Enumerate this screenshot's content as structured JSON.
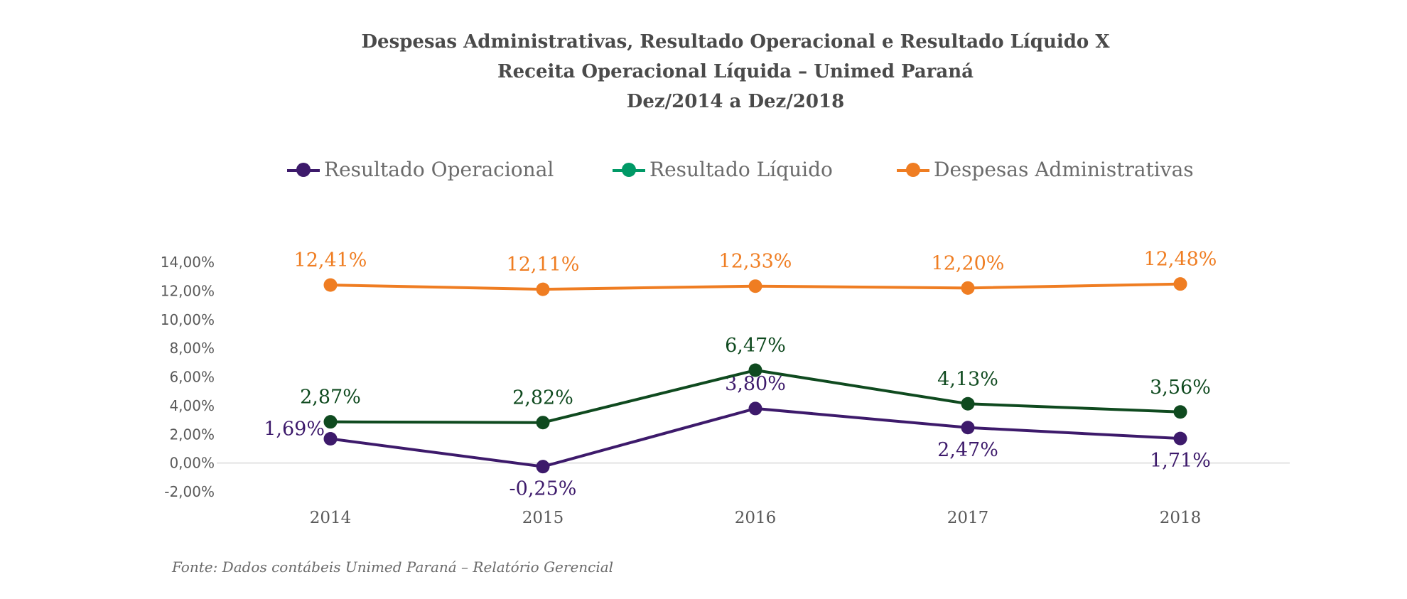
{
  "title_lines": [
    "Despesas Administrativas, Resultado Operacional e Resultado Líquido X",
    "Receita Operacional Líquida – Unimed Paraná",
    "Dez/2014 a Dez/2018"
  ],
  "source_note": "Fonte: Dados contábeis Unimed Paraná – Relatório Gerencial",
  "chart_data": {
    "type": "line",
    "title": "Despesas Administrativas, Resultado Operacional e Resultado Líquido X Receita Operacional Líquida – Unimed Paraná Dez/2014 a Dez/2018",
    "categories": [
      "2014",
      "2015",
      "2016",
      "2017",
      "2018"
    ],
    "ylim": [
      -2,
      14
    ],
    "y_ticks": [
      {
        "value": 14,
        "label": "14,00%"
      },
      {
        "value": 12,
        "label": "12,00%"
      },
      {
        "value": 10,
        "label": "10,00%"
      },
      {
        "value": 8,
        "label": "8,00%"
      },
      {
        "value": 6,
        "label": "6,00%"
      },
      {
        "value": 4,
        "label": "4,00%"
      },
      {
        "value": 2,
        "label": "2,00%"
      },
      {
        "value": 0,
        "label": "0,00%"
      },
      {
        "value": -2,
        "label": "-2,00%"
      }
    ],
    "grid": false,
    "legend_position": "top",
    "series": [
      {
        "name": "Resultado Operacional",
        "color": "#3d1a6b",
        "legend_color": "#3d1a6b",
        "values": [
          1.69,
          -0.25,
          3.8,
          2.47,
          1.71
        ],
        "labels": [
          "1,69%",
          "-0,25%",
          "3,80%",
          "2,47%",
          "1,71%"
        ],
        "label_positions": [
          "left",
          "below",
          "above",
          "below",
          "below"
        ]
      },
      {
        "name": "Resultado Líquido",
        "color": "#0f4a1f",
        "legend_color": "#009966",
        "values": [
          2.87,
          2.82,
          6.47,
          4.13,
          3.56
        ],
        "labels": [
          "2,87%",
          "2,82%",
          "6,47%",
          "4,13%",
          "3,56%"
        ],
        "label_positions": [
          "above",
          "above",
          "above",
          "above",
          "above"
        ]
      },
      {
        "name": "Despesas Administrativas",
        "color": "#ef7d22",
        "legend_color": "#ef7d22",
        "values": [
          12.41,
          12.11,
          12.33,
          12.2,
          12.48
        ],
        "labels": [
          "12,41%",
          "12,11%",
          "12,33%",
          "12,20%",
          "12,48%"
        ],
        "label_positions": [
          "above",
          "above",
          "above",
          "above",
          "above"
        ]
      }
    ]
  }
}
